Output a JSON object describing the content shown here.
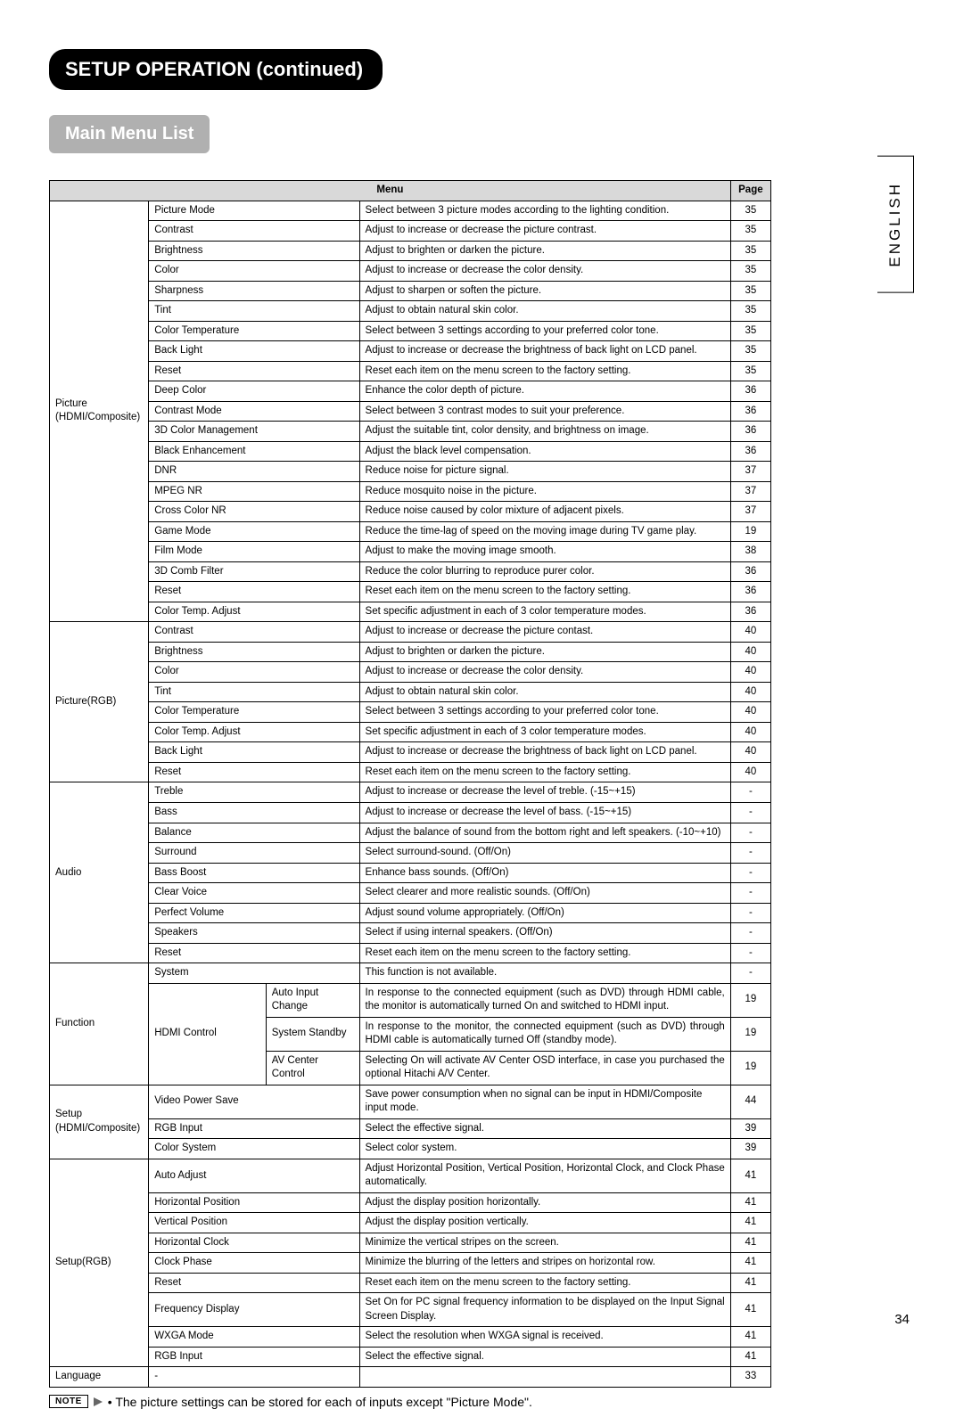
{
  "title": "SETUP OPERATION (continued)",
  "subtitle": "Main Menu List",
  "side_language": "ENGLISH",
  "page_number": "34",
  "headers": {
    "menu": "Menu",
    "page": "Page"
  },
  "note": {
    "label": "NOTE",
    "text": "• The picture settings can be stored for each of inputs except \"Picture Mode\"."
  },
  "colors": {
    "title_bg": "#000000",
    "title_fg": "#ffffff",
    "subtitle_bg": "#b0b0b0",
    "subtitle_fg": "#ffffff",
    "header_bg": "#d9d9d9",
    "border": "#000000",
    "background": "#ffffff"
  },
  "sections": [
    {
      "category": "Picture\n(HDMI/Composite)",
      "rows": [
        {
          "item": "Picture Mode",
          "desc": "Select between 3 picture modes according to the lighting condition.",
          "page": "35"
        },
        {
          "item": "Contrast",
          "desc": "Adjust to increase or decrease the picture contrast.",
          "page": "35"
        },
        {
          "item": "Brightness",
          "desc": "Adjust to brighten or darken the picture.",
          "page": "35"
        },
        {
          "item": "Color",
          "desc": "Adjust to increase or decrease the color density.",
          "page": "35"
        },
        {
          "item": "Sharpness",
          "desc": "Adjust to sharpen or soften the picture.",
          "page": "35"
        },
        {
          "item": "Tint",
          "desc": "Adjust to obtain natural skin color.",
          "page": "35"
        },
        {
          "item": "Color Temperature",
          "desc": "Select between 3 settings according to your preferred color tone.",
          "page": "35"
        },
        {
          "item": "Back Light",
          "desc": "Adjust to increase or decrease the brightness of back light on LCD panel.",
          "page": "35"
        },
        {
          "item": "Reset",
          "desc": "Reset each item on the menu screen to the factory setting.",
          "page": "35"
        },
        {
          "item": "Deep Color",
          "desc": "Enhance the color depth of picture.",
          "page": "36"
        },
        {
          "item": "Contrast Mode",
          "desc": "Select between 3 contrast modes to suit your preference.",
          "page": "36"
        },
        {
          "item": "3D Color Management",
          "desc": "Adjust the suitable tint, color density, and brightness on image.",
          "page": "36"
        },
        {
          "item": "Black Enhancement",
          "desc": "Adjust the black level compensation.",
          "page": "36"
        },
        {
          "item": "DNR",
          "desc": "Reduce noise for picture signal.",
          "page": "37"
        },
        {
          "item": "MPEG NR",
          "desc": "Reduce mosquito noise in the picture.",
          "page": "37"
        },
        {
          "item": "Cross Color NR",
          "desc": "Reduce noise caused by color mixture of adjacent pixels.",
          "page": "37"
        },
        {
          "item": "Game Mode",
          "desc": "Reduce the time-lag of speed on the moving image during TV game play.",
          "page": "19"
        },
        {
          "item": "Film Mode",
          "desc": "Adjust to make the moving image smooth.",
          "page": "38"
        },
        {
          "item": "3D Comb Filter",
          "desc": "Reduce the color blurring to reproduce purer color.",
          "page": "36"
        },
        {
          "item": "Reset",
          "desc": "Reset each item on the menu screen to the factory setting.",
          "page": "36"
        },
        {
          "item": "Color Temp. Adjust",
          "desc": "Set specific adjustment in each of 3 color temperature modes.",
          "page": "36"
        }
      ]
    },
    {
      "category": "Picture(RGB)",
      "rows": [
        {
          "item": "Contrast",
          "desc": "Adjust to increase or decrease the picture contast.",
          "page": "40"
        },
        {
          "item": "Brightness",
          "desc": "Adjust to brighten or darken the picture.",
          "page": "40"
        },
        {
          "item": "Color",
          "desc": "Adjust to increase or decrease the color density.",
          "page": "40"
        },
        {
          "item": "Tint",
          "desc": "Adjust to obtain natural skin color.",
          "page": "40"
        },
        {
          "item": "Color Temperature",
          "desc": "Select between 3 settings according to your preferred color tone.",
          "page": "40"
        },
        {
          "item": "Color Temp. Adjust",
          "desc": "Set specific adjustment in each of 3 color temperature modes.",
          "page": "40"
        },
        {
          "item": "Back Light",
          "desc": "Adjust to increase or decrease the brightness of back light on LCD panel.",
          "page": "40"
        },
        {
          "item": "Reset",
          "desc": "Reset each item on the menu screen to the factory setting.",
          "page": "40"
        }
      ]
    },
    {
      "category": "Audio",
      "rows": [
        {
          "item": "Treble",
          "desc": "Adjust to increase or decrease the level of treble. (-15~+15)",
          "page": "-"
        },
        {
          "item": "Bass",
          "desc": "Adjust to increase or decrease the level of bass. (-15~+15)",
          "page": "-"
        },
        {
          "item": "Balance",
          "desc": "Adjust the balance of sound from the bottom right and left speakers. (-10~+10)",
          "page": "-"
        },
        {
          "item": "Surround",
          "desc": "Select surround-sound. (Off/On)",
          "page": "-"
        },
        {
          "item": "Bass Boost",
          "desc": "Enhance bass sounds. (Off/On)",
          "page": "-"
        },
        {
          "item": "Clear Voice",
          "desc": "Select clearer and more realistic sounds. (Off/On)",
          "page": "-"
        },
        {
          "item": "Perfect Volume",
          "desc": "Adjust sound volume appropriately. (Off/On)",
          "page": "-"
        },
        {
          "item": "Speakers",
          "desc": "Select if using internal speakers. (Off/On)",
          "page": "-"
        },
        {
          "item": "Reset",
          "desc": "Reset each item on the menu screen to the factory setting.",
          "page": "-"
        }
      ]
    },
    {
      "category": "Function",
      "simple_rows": [
        {
          "item": "System",
          "desc": "This function is not available.",
          "page": "-"
        }
      ],
      "hdmi": {
        "label": "HDMI Control",
        "subs": [
          {
            "sub": "Auto Input Change",
            "desc": "In response to the connected equipment (such as DVD) through HDMI cable, the monitor is automatically turned On and switched to HDMI input.",
            "page": "19",
            "justify": true
          },
          {
            "sub": "System Standby",
            "desc": "In response to the monitor, the connected equipment (such as DVD) through HDMI cable is automatically turned Off (standby mode).",
            "page": "19",
            "justify": true
          },
          {
            "sub": "AV Center Control",
            "desc": "Selecting On will activate AV Center OSD interface, in case you purchased the optional Hitachi A/V Center.",
            "page": "19",
            "justify": true
          }
        ]
      }
    },
    {
      "category": "Setup\n(HDMI/Composite)",
      "rows": [
        {
          "item": "Video Power Save",
          "desc": "Save power consumption when no signal can be input in HDMI/Composite input mode.",
          "page": "44"
        },
        {
          "item": "RGB Input",
          "desc": "Select the effective signal.",
          "page": "39"
        },
        {
          "item": "Color System",
          "desc": "Select color system.",
          "page": "39"
        }
      ]
    },
    {
      "category": "Setup(RGB)",
      "rows": [
        {
          "item": "Auto Adjust",
          "desc": "Adjust Horizontal Position, Vertical Position, Horizontal Clock, and Clock Phase automatically.",
          "page": "41",
          "justify": true
        },
        {
          "item": "Horizontal Position",
          "desc": "Adjust the display position horizontally.",
          "page": "41"
        },
        {
          "item": "Vertical Position",
          "desc": "Adjust the display position vertically.",
          "page": "41"
        },
        {
          "item": "Horizontal Clock",
          "desc": "Minimize the vertical stripes on the screen.",
          "page": "41"
        },
        {
          "item": "Clock Phase",
          "desc": "Minimize the blurring of the letters and stripes on horizontal row.",
          "page": "41"
        },
        {
          "item": "Reset",
          "desc": "Reset each item on the menu screen to the factory setting.",
          "page": "41"
        },
        {
          "item": "Frequency Display",
          "desc": "Set On for PC signal frequency information to be displayed on the Input Signal Screen Display.",
          "page": "41",
          "justify": true
        },
        {
          "item": "WXGA Mode",
          "desc": "Select the resolution when WXGA signal is received.",
          "page": "41"
        },
        {
          "item": "RGB Input",
          "desc": "Select the effective signal.",
          "page": "41"
        }
      ]
    },
    {
      "category": "Language",
      "rows": [
        {
          "item": "-",
          "desc": "",
          "page": "33"
        }
      ]
    }
  ]
}
